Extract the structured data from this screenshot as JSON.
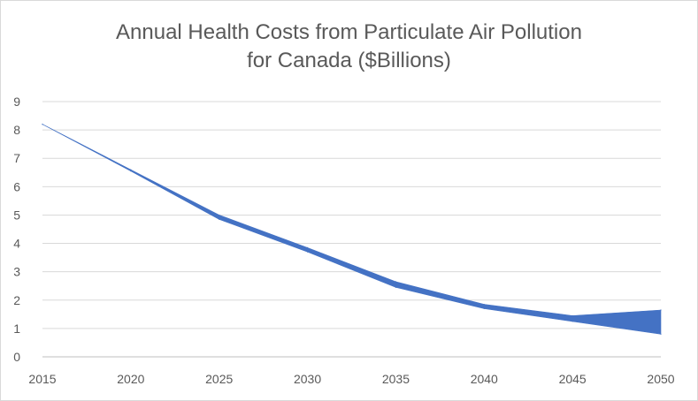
{
  "chart_data": {
    "type": "area",
    "title_lines": [
      "Annual Health Costs from Particulate Air Pollution",
      "for Canada ($Billions)"
    ],
    "xlabel": "",
    "ylabel": "",
    "x": [
      2015,
      2020,
      2025,
      2030,
      2035,
      2040,
      2045,
      2050
    ],
    "y_ticks": [
      0,
      1,
      2,
      3,
      4,
      5,
      6,
      7,
      8,
      9
    ],
    "xlim": [
      2015,
      2050
    ],
    "ylim": [
      0,
      9
    ],
    "grid": true,
    "legend": "none",
    "band_color": "#4472c4",
    "series": [
      {
        "values": [
          8.2,
          6.6,
          5.0,
          3.85,
          2.65,
          1.85,
          1.45,
          1.65
        ]
      },
      {
        "values": [
          8.2,
          6.55,
          4.85,
          3.7,
          2.45,
          1.7,
          1.25,
          0.8
        ]
      }
    ]
  }
}
